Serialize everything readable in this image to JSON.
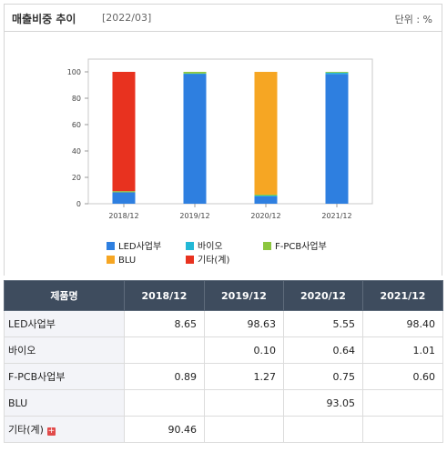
{
  "header": {
    "title": "매출비중 추이",
    "date": "[2022/03]",
    "unit": "단위 : %"
  },
  "chart_data": {
    "type": "bar",
    "stacked": true,
    "categories": [
      "2018/12",
      "2019/12",
      "2020/12",
      "2021/12"
    ],
    "ylim": [
      0,
      100
    ],
    "yticks": [
      0,
      20,
      40,
      60,
      80,
      100
    ],
    "grid": false,
    "legend_position": "bottom",
    "series": [
      {
        "name": "LED사업부",
        "color": "#2e7fe0",
        "values": [
          8.65,
          98.63,
          5.55,
          98.4
        ]
      },
      {
        "name": "바이오",
        "color": "#22b8d6",
        "values": [
          0,
          0.1,
          0.64,
          1.01
        ]
      },
      {
        "name": "F-PCB사업부",
        "color": "#8cc63e",
        "values": [
          0.89,
          1.27,
          0.75,
          0.6
        ]
      },
      {
        "name": "BLU",
        "color": "#f6a623",
        "values": [
          0,
          0,
          93.05,
          0
        ]
      },
      {
        "name": "기타(계)",
        "color": "#e8321f",
        "values": [
          90.46,
          0,
          0,
          0
        ]
      }
    ]
  },
  "table": {
    "header_label": "제품명",
    "columns": [
      "2018/12",
      "2019/12",
      "2020/12",
      "2021/12"
    ],
    "rows": [
      {
        "label": "LED사업부",
        "cells": [
          "8.65",
          "98.63",
          "5.55",
          "98.40"
        ]
      },
      {
        "label": "바이오",
        "cells": [
          "",
          "0.10",
          "0.64",
          "1.01"
        ]
      },
      {
        "label": "F-PCB사업부",
        "cells": [
          "0.89",
          "1.27",
          "0.75",
          "0.60"
        ]
      },
      {
        "label": "BLU",
        "cells": [
          "",
          "",
          "93.05",
          ""
        ]
      },
      {
        "label": "기타(계)",
        "cells": [
          "90.46",
          "",
          "",
          ""
        ],
        "expand_icon": "plus-icon"
      }
    ]
  }
}
